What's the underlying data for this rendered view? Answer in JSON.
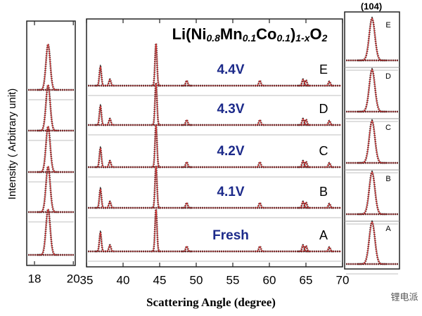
{
  "chart_data": [
    {
      "type": "xrd",
      "xlim": [
        17.6,
        20.1
      ],
      "xticks": [
        18,
        20
      ],
      "ylabel": "Intensity ( Arbitrary unit)",
      "peaks": {
        "x": [
          18.7
        ],
        "height": [
          100
        ]
      }
    },
    {
      "type": "xrd",
      "title": [
        "Li(Ni",
        "0.8",
        "Mn",
        "0.1",
        "Co",
        "0.1",
        ")",
        "1-x",
        "O",
        "2"
      ],
      "xlabel": "Scattering Angle (degree)",
      "xlim": [
        35,
        70
      ],
      "xticks": [
        35,
        40,
        45,
        50,
        55,
        60,
        65,
        70
      ],
      "series": [
        {
          "name": "4.4V",
          "label": "E"
        },
        {
          "name": "4.3V",
          "label": "D"
        },
        {
          "name": "4.2V",
          "label": "C"
        },
        {
          "name": "4.1V",
          "label": "B"
        },
        {
          "name": "Fresh",
          "label": "A"
        }
      ],
      "peaks": {
        "x": [
          36.9,
          38.2,
          44.5,
          48.7,
          58.7,
          64.6,
          65.0,
          68.2
        ],
        "height": [
          45,
          15,
          100,
          12,
          12,
          15,
          13,
          10
        ]
      }
    },
    {
      "type": "xrd",
      "title": "(104)",
      "xlim": [
        43.6,
        45.4
      ],
      "peaks": {
        "x": [
          44.5
        ],
        "height": [
          100
        ]
      }
    }
  ],
  "watermark": "锂电派"
}
